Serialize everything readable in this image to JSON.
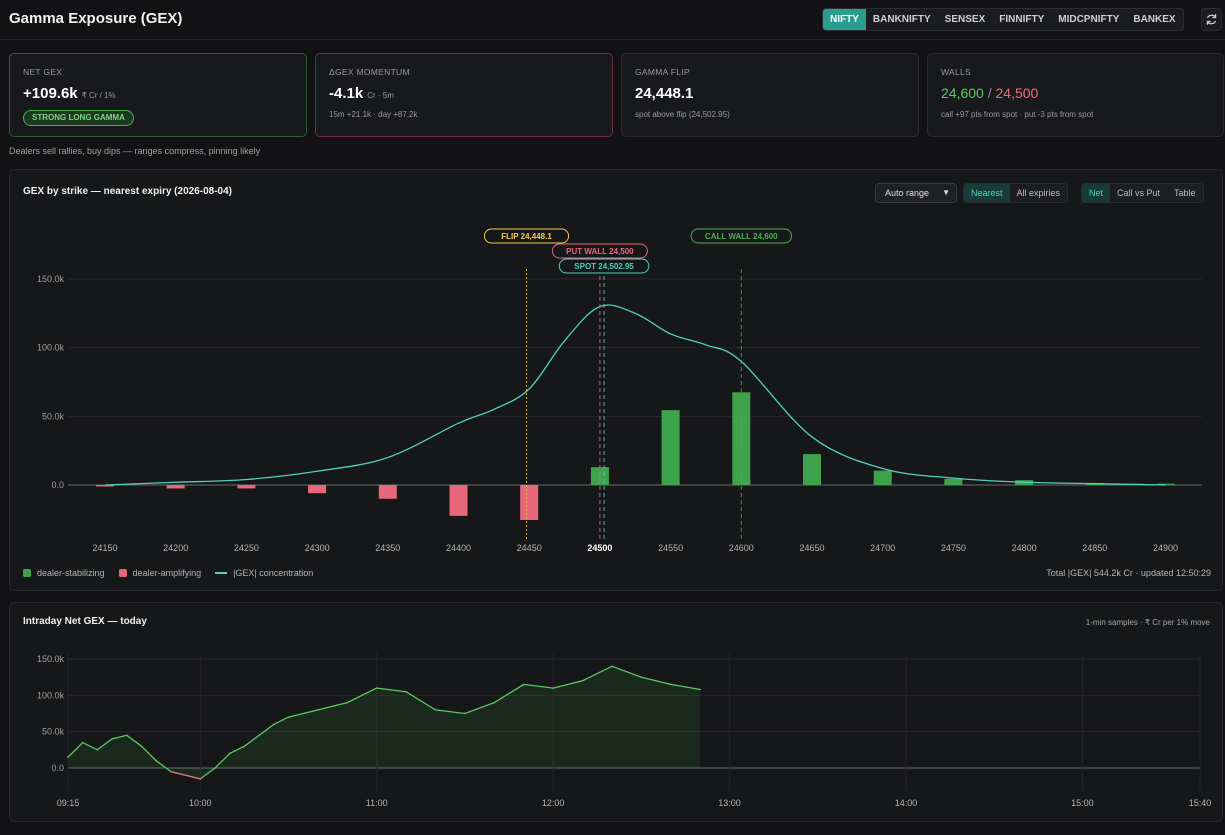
{
  "app": {
    "title": "Gamma Exposure (GEX)"
  },
  "index_tabs": [
    {
      "label": "NIFTY",
      "active": true
    },
    {
      "label": "BANKNIFTY",
      "active": false
    },
    {
      "label": "SENSEX",
      "active": false
    },
    {
      "label": "FINNIFTY",
      "active": false
    },
    {
      "label": "MIDCPNIFTY",
      "active": false
    },
    {
      "label": "BANKEX",
      "active": false
    }
  ],
  "cards": {
    "net_gex": {
      "label": "NET GEX",
      "value": "+109.6k",
      "unit": "₹ Cr / 1%",
      "badge": "STRONG LONG GAMMA"
    },
    "momentum": {
      "label": "ΔGEX MOMENTUM",
      "value": "-4.1k",
      "unit": "Cr · 5m",
      "sub": "15m +21.1k · day +87.2k"
    },
    "flip": {
      "label": "GAMMA FLIP",
      "value": "24,448.1",
      "sub": "spot above flip (24,502.95)"
    },
    "walls": {
      "label": "WALLS",
      "call": "24,600",
      "separator": "/",
      "put": "24,500",
      "sub": "call +97 pts from spot · put -3 pts from spot"
    }
  },
  "regime_note": "Dealers sell rallies, buy dips — ranges compress, pinning likely",
  "strike_panel": {
    "title": "GEX by strike — nearest expiry (2026-08-04)",
    "range_select": "Auto range",
    "expiry_tabs": [
      {
        "label": "Nearest",
        "active": true
      },
      {
        "label": "All expiries",
        "active": false
      }
    ],
    "view_tabs": [
      {
        "label": "Net",
        "active": true
      },
      {
        "label": "Call vs Put",
        "active": false
      },
      {
        "label": "Table",
        "active": false
      }
    ],
    "legend": [
      {
        "label": "dealer-stabilizing",
        "color": "#3fa34d"
      },
      {
        "label": "dealer-amplifying",
        "color": "#e8687b"
      },
      {
        "label": "|GEX| concentration",
        "color": "#4fd1c0"
      }
    ],
    "footer": "Total |GEX| 544.2k Cr · updated 12:50:29"
  },
  "intraday_panel": {
    "title": "Intraday Net GEX — today",
    "note": "1-min samples · ₹ Cr per 1% move"
  },
  "chart_data": [
    {
      "type": "bar",
      "title": "GEX by strike — nearest expiry (2026-08-04)",
      "categories": [
        "24150",
        "24200",
        "24250",
        "24300",
        "24350",
        "24400",
        "24450",
        "24500",
        "24550",
        "24600",
        "24650",
        "24700",
        "24750",
        "24800",
        "24850",
        "24900"
      ],
      "highlight_category": "24500",
      "series": [
        {
          "name": "Net GEX",
          "values": [
            -0.5,
            -2.5,
            -2.5,
            -6,
            -10,
            -22.5,
            -25.5,
            13,
            54.5,
            67.5,
            22.5,
            10.5,
            4.5,
            3.5,
            1.5,
            1
          ]
        }
      ],
      "concentration_curve": {
        "x": [
          24150,
          24200,
          24250,
          24300,
          24350,
          24400,
          24425,
          24450,
          24475,
          24500,
          24525,
          24550,
          24575,
          24600,
          24650,
          24700,
          24750,
          24800,
          24850,
          24900
        ],
        "y": [
          0,
          2,
          4,
          10,
          20,
          45,
          55,
          70,
          105,
          130,
          125,
          110,
          102,
          90,
          35,
          12,
          5,
          2,
          1,
          0
        ]
      },
      "markers": [
        {
          "label": "FLIP 24,448.1",
          "x": 24448.1,
          "color": "#f2c94c"
        },
        {
          "label": "PUT WALL 24,500",
          "x": 24500,
          "color": "#e8687b"
        },
        {
          "label": "SPOT 24,502.95",
          "x": 24502.95,
          "color": "#4fd1c0"
        },
        {
          "label": "CALL WALL 24,600",
          "x": 24600,
          "color": "#4caf50"
        }
      ],
      "y_ticks": [
        "0.0",
        "50.0k",
        "100.0k",
        "150.0k"
      ],
      "ylim": [
        -30,
        160
      ]
    },
    {
      "type": "area",
      "title": "Intraday Net GEX — today",
      "x_ticks": [
        "09:15",
        "10:00",
        "11:00",
        "12:00",
        "13:00",
        "14:00",
        "15:00",
        "15:40"
      ],
      "y_ticks": [
        "0.0",
        "50.0k",
        "100.0k",
        "150.0k"
      ],
      "ylim": [
        -20,
        160
      ],
      "x": [
        "09:15",
        "09:20",
        "09:25",
        "09:30",
        "09:35",
        "09:40",
        "09:45",
        "09:50",
        "09:55",
        "10:00",
        "10:05",
        "10:10",
        "10:15",
        "10:20",
        "10:25",
        "10:30",
        "10:40",
        "10:50",
        "11:00",
        "11:10",
        "11:20",
        "11:30",
        "11:40",
        "11:50",
        "12:00",
        "12:10",
        "12:20",
        "12:30",
        "12:40",
        "12:50"
      ],
      "values": [
        15,
        35,
        25,
        40,
        45,
        30,
        10,
        -5,
        -10,
        -15,
        0,
        20,
        30,
        45,
        60,
        70,
        80,
        90,
        110,
        105,
        80,
        75,
        90,
        115,
        110,
        120,
        140,
        125,
        115,
        108
      ]
    }
  ]
}
